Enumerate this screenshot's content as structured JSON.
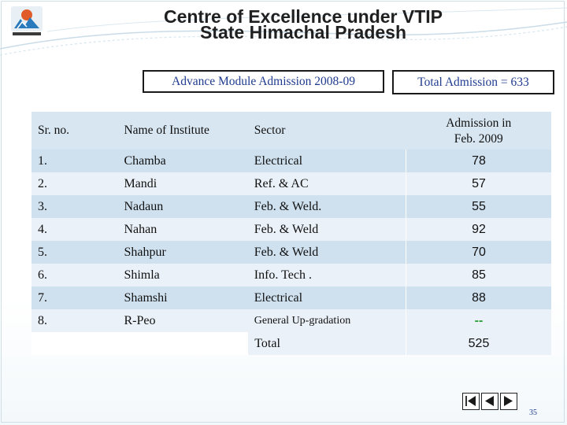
{
  "header": {
    "title_line1": "Centre of Excellence under VTIP",
    "title_line2": "State Himachal Pradesh"
  },
  "boxes": {
    "module": "Advance Module Admission 2008-09",
    "total": "Total Admission = 633"
  },
  "table": {
    "headers": [
      "Sr. no.",
      "Name of Institute",
      "Sector",
      "Admission in",
      "Feb. 2009"
    ],
    "rows": [
      {
        "sr": "1.",
        "institute": "Chamba",
        "sector": "Electrical",
        "admission": "78"
      },
      {
        "sr": "2.",
        "institute": "Mandi",
        "sector": "Ref. & AC",
        "admission": "57"
      },
      {
        "sr": "3.",
        "institute": "Nadaun",
        "sector": "Feb. & Weld.",
        "admission": "55"
      },
      {
        "sr": "4.",
        "institute": "Nahan",
        "sector": "Feb. & Weld",
        "admission": "92"
      },
      {
        "sr": "5.",
        "institute": "Shahpur",
        "sector": "Feb. & Weld",
        "admission": "70"
      },
      {
        "sr": "6.",
        "institute": "Shimla",
        "sector": "Info. Tech .",
        "admission": "85"
      },
      {
        "sr": "7.",
        "institute": "Shamshi",
        "sector": "Electrical",
        "admission": "88"
      },
      {
        "sr": "8.",
        "institute": "R-Peo",
        "sector": "General  Up-gradation",
        "admission": "--"
      }
    ],
    "total_label": "Total",
    "total_value": "525"
  },
  "page_number": "35",
  "colors": {
    "header_row": "#d8e6f1",
    "row_dark": "#cfe1ef",
    "row_light": "#eaf1f8",
    "dash_green": "#2e9e3a",
    "box_text": "#1f3b8f"
  },
  "icons": [
    "emblem-logo-icon",
    "first-slide-icon",
    "previous-slide-icon",
    "next-slide-icon"
  ]
}
